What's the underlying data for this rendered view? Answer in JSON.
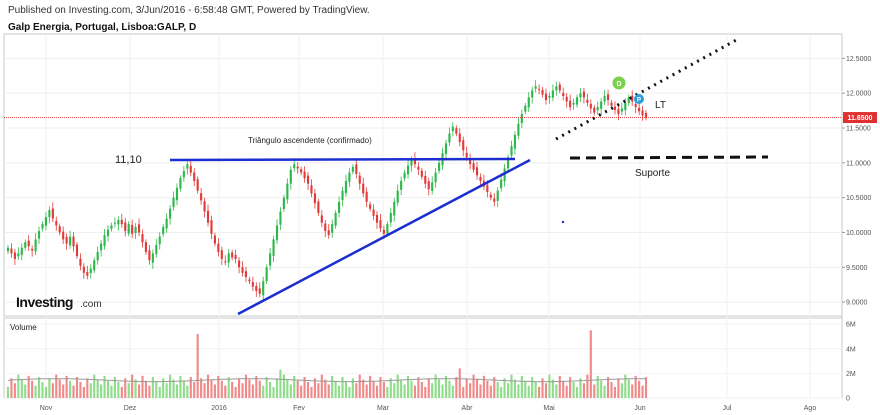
{
  "header": {
    "published": "Published on Investing.com, 3/Jun/2016 - 6:58:48 GMT, Powered by TradingView.",
    "title": "Galp Energia, Portugal, Lisboa:GALP, D"
  },
  "logo": {
    "brand": "Investing",
    "suffix": ".com"
  },
  "colors": {
    "up": "#2db84b",
    "down": "#e23a3a",
    "up_volume": "#8fdc8a",
    "down_volume": "#f08a8a",
    "trend_lines": "#1c2ecf",
    "price_line": "#e03030",
    "price_badge": "#e03030",
    "marker_d": "#7bd14a",
    "marker_p": "#2a9ee0"
  },
  "chart_data": [
    {
      "type": "candlestick",
      "x_axis": {
        "tick_labels": [
          "Nov",
          "Dez",
          "2016",
          "Fev",
          "Mar",
          "Abr",
          "Mai",
          "Jun",
          "Jul",
          "Ago"
        ]
      },
      "y_axis": {
        "range": [
          8.8,
          12.85
        ],
        "tick_labels": [
          "9.0000",
          "9.5000",
          "10.0000",
          "10.5000",
          "11.0000",
          "11.5000",
          "12.0000",
          "12.5000"
        ],
        "tick_values": [
          9.0,
          9.5,
          10.0,
          10.5,
          11.0,
          11.5,
          12.0,
          12.5
        ]
      },
      "last_price": {
        "label": "11.6500",
        "value": 11.65
      },
      "close_series": [
        9.78,
        9.7,
        9.62,
        9.7,
        9.78,
        9.86,
        9.8,
        9.74,
        9.9,
        10.02,
        10.12,
        10.22,
        10.32,
        10.2,
        10.1,
        10.0,
        9.9,
        9.84,
        9.94,
        9.8,
        9.66,
        9.52,
        9.42,
        9.38,
        9.48,
        9.6,
        9.72,
        9.84,
        9.96,
        10.04,
        10.1,
        10.14,
        10.18,
        10.12,
        10.02,
        10.12,
        9.98,
        10.08,
        10.0,
        9.86,
        9.72,
        9.6,
        9.7,
        9.82,
        9.94,
        10.08,
        10.2,
        10.34,
        10.5,
        10.64,
        10.78,
        10.88,
        10.98,
        10.86,
        10.74,
        10.6,
        10.46,
        10.3,
        10.14,
        9.98,
        9.84,
        9.72,
        9.62,
        9.58,
        9.7,
        9.64,
        9.62,
        9.5,
        9.42,
        9.36,
        9.3,
        9.22,
        9.16,
        9.12,
        9.3,
        9.5,
        9.7,
        9.9,
        10.1,
        10.3,
        10.5,
        10.7,
        10.9,
        10.98,
        10.92,
        10.86,
        10.78,
        10.7,
        10.56,
        10.42,
        10.28,
        10.14,
        10.02,
        9.96,
        10.12,
        10.28,
        10.44,
        10.6,
        10.74,
        10.86,
        10.94,
        10.84,
        10.7,
        10.56,
        10.44,
        10.34,
        10.24,
        10.14,
        10.06,
        9.98,
        10.12,
        10.28,
        10.44,
        10.6,
        10.74,
        10.86,
        10.96,
        11.04,
        10.98,
        10.9,
        10.8,
        10.7,
        10.62,
        10.72,
        10.86,
        11.0,
        11.14,
        11.28,
        11.42,
        11.52,
        11.42,
        11.3,
        11.18,
        11.08,
        10.98,
        10.9,
        10.82,
        10.74,
        10.66,
        10.58,
        10.5,
        10.44,
        10.6,
        10.76,
        10.92,
        11.08,
        11.24,
        11.4,
        11.56,
        11.7,
        11.82,
        11.94,
        12.04,
        12.1,
        12.06,
        11.98,
        11.9,
        11.96,
        12.04,
        12.1,
        12.04,
        11.96,
        11.88,
        11.8,
        11.86,
        11.94,
        12.0,
        11.94,
        11.86,
        11.78,
        11.72,
        11.8,
        11.88,
        11.96,
        11.9,
        11.82,
        11.76,
        11.7,
        11.78,
        11.86,
        11.94,
        11.88,
        11.8,
        11.74,
        11.68,
        11.65
      ],
      "volume_axis": {
        "range": [
          0,
          6.5
        ],
        "tick_labels": [
          "0",
          "2M",
          "4M",
          "6M"
        ],
        "tick_values": [
          0,
          2,
          4,
          6
        ]
      },
      "volume_label": "Volume"
    }
  ],
  "annotations": {
    "level": "11,10",
    "triangle": "Triângulo ascendente (confirmado)",
    "lt": "LT",
    "support": "Suporte",
    "marker_d": "D",
    "marker_p": "P"
  }
}
